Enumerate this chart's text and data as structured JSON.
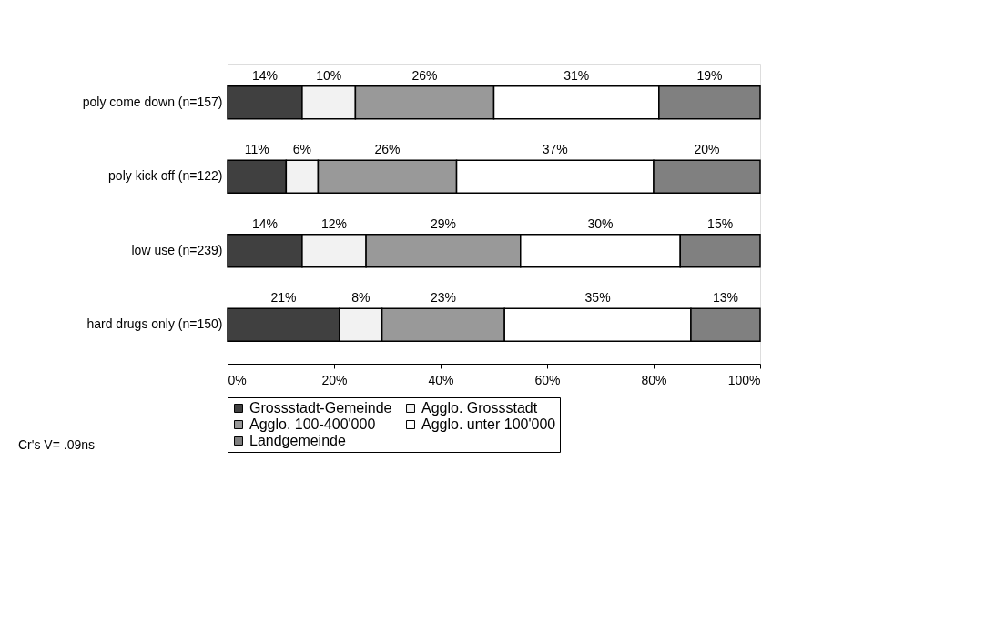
{
  "chart_data": {
    "type": "bar",
    "orientation": "horizontal",
    "stacked": true,
    "categories": [
      "poly come down (n=157)",
      "poly kick off (n=122)",
      "low use (n=239)",
      "hard drugs only (n=150)"
    ],
    "series": [
      {
        "name": "Grossstadt-Gemeinde",
        "color": "#404040",
        "values": [
          14,
          11,
          14,
          21
        ],
        "value_labels": [
          "14%",
          "11%",
          "14%",
          "21%"
        ]
      },
      {
        "name": "Agglo. Grossstadt",
        "color": "#f2f2f2",
        "values": [
          10,
          6,
          12,
          8
        ],
        "value_labels": [
          "10%",
          "6%",
          "12%",
          "8%"
        ]
      },
      {
        "name": "Agglo. 100-400'000",
        "color": "#999999",
        "values": [
          26,
          26,
          29,
          23
        ],
        "value_labels": [
          "26%",
          "26%",
          "29%",
          "23%"
        ]
      },
      {
        "name": "Agglo. unter 100'000",
        "color": "#ffffff",
        "values": [
          31,
          37,
          30,
          35
        ],
        "value_labels": [
          "31%",
          "37%",
          "30%",
          "35%"
        ]
      },
      {
        "name": "Landgemeinde",
        "color": "#808080",
        "values": [
          19,
          20,
          15,
          13
        ],
        "value_labels": [
          "19%",
          "20%",
          "15%",
          "13%"
        ]
      }
    ],
    "xlim": [
      0,
      100
    ],
    "xticks": [
      {
        "value": 0,
        "label": "0%"
      },
      {
        "value": 20,
        "label": "20%"
      },
      {
        "value": 40,
        "label": "40%"
      },
      {
        "value": 60,
        "label": "60%"
      },
      {
        "value": 80,
        "label": "80%"
      },
      {
        "value": 100,
        "label": "100%"
      }
    ],
    "grid": false,
    "legend": "bottom",
    "annotations": [
      "Cr's V= .09ns"
    ]
  }
}
